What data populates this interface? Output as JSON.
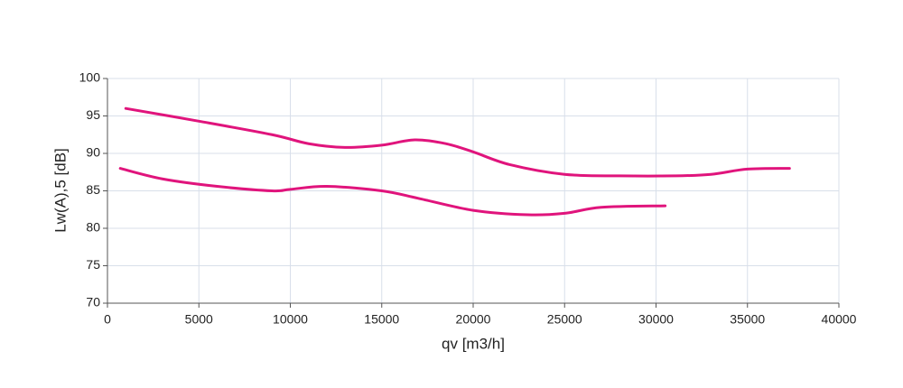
{
  "chart_data": {
    "type": "line",
    "xlabel": "qv [m3/h]",
    "ylabel": "Lw(A),5 [dB]",
    "xlim": [
      0,
      40000
    ],
    "xticks": [
      0,
      5000,
      10000,
      15000,
      20000,
      25000,
      30000,
      35000,
      40000
    ],
    "ylim": [
      70,
      100
    ],
    "yticks": [
      70,
      75,
      80,
      85,
      90,
      95,
      100
    ],
    "grid": true,
    "series": [
      {
        "color": "#e0147c",
        "x": [
          1000,
          5000,
          9000,
          11000,
          13000,
          15000,
          16800,
          18500,
          20000,
          22000,
          25000,
          28000,
          31000,
          33000,
          35000,
          37300
        ],
        "values": [
          96,
          94.3,
          92.5,
          91.3,
          90.8,
          91.1,
          91.8,
          91.3,
          90.2,
          88.5,
          87.2,
          87,
          87,
          87.2,
          87.9,
          88
        ]
      },
      {
        "color": "#e0147c",
        "x": [
          700,
          3000,
          6000,
          9000,
          10000,
          12000,
          15000,
          17000,
          20000,
          23000,
          25000,
          27000,
          30500
        ],
        "values": [
          88,
          86.6,
          85.6,
          85,
          85.2,
          85.6,
          85,
          84,
          82.4,
          81.8,
          82,
          82.8,
          83
        ]
      }
    ]
  }
}
